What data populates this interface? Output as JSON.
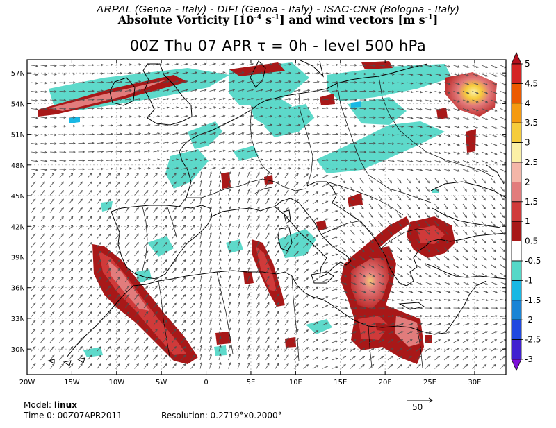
{
  "header": {
    "credits": "ARPAL (Genoa - Italy)  -  DIFI (Genoa - Italy)  -  ISAC-CNR (Bologna - Italy)",
    "variable_prefix": "Absolute Vorticity [10",
    "variable_exp": "-4",
    "variable_mid": " s",
    "variable_exp2": "-1",
    "variable_suffix": "] and wind vectors [m s",
    "variable_exp3": "-1",
    "variable_end": "]",
    "title": "00Z Thu 07 APR  τ = 0h  -  level 500 hPa"
  },
  "map": {
    "lat_labels": [
      "57N",
      "54N",
      "51N",
      "48N",
      "45N",
      "42N",
      "39N",
      "36N",
      "33N",
      "30N"
    ],
    "lat_values": [
      57,
      54,
      51,
      48,
      45,
      42,
      39,
      36,
      33,
      30
    ],
    "lon_labels": [
      "20W",
      "15W",
      "10W",
      "5W",
      "0",
      "5E",
      "10E",
      "15E",
      "20E",
      "25E",
      "30E"
    ],
    "lon_values": [
      -20,
      -15,
      -10,
      -5,
      0,
      5,
      10,
      15,
      20,
      25,
      30
    ],
    "lon_range": [
      -20,
      33.5
    ],
    "lat_range": [
      27.5,
      58.3
    ]
  },
  "colorbar": {
    "labels": [
      "5",
      "4.5",
      "4",
      "3.5",
      "3",
      "2.5",
      "2",
      "1.5",
      "1",
      "0.5",
      "-0.5",
      "-1",
      "-1.5",
      "-2",
      "-2.5",
      "-3"
    ],
    "colors": [
      "#b50f1d",
      "#d42424",
      "#ec5a00",
      "#f59a10",
      "#f6cc3c",
      "#fbf0a6",
      "#f4b6a8",
      "#e27c7c",
      "#d03a3a",
      "#a81818",
      "#ffffff",
      "#55d8c8",
      "#18b8e4",
      "#1a84d6",
      "#2048e0",
      "#4020d0",
      "#7d10d8"
    ],
    "pos_colors": {
      "0.5-1": "#a81818",
      "1-1.5": "#d03a3a",
      "1.5-2": "#e27c7c",
      "2.5-3": "#fbf0a6",
      "3-3.5": "#f6cc3c"
    },
    "neg_colors": {
      "-0.5--1": "#55d8c8",
      "-1--1.5": "#18b8e4"
    }
  },
  "footer": {
    "model_label": "Model: ",
    "model_value": "linux",
    "time_label": "Time 0: 00Z07APR2011",
    "resolution_label": "Resolution: 0.2719°x0.2000°",
    "reference_vector": "50"
  }
}
